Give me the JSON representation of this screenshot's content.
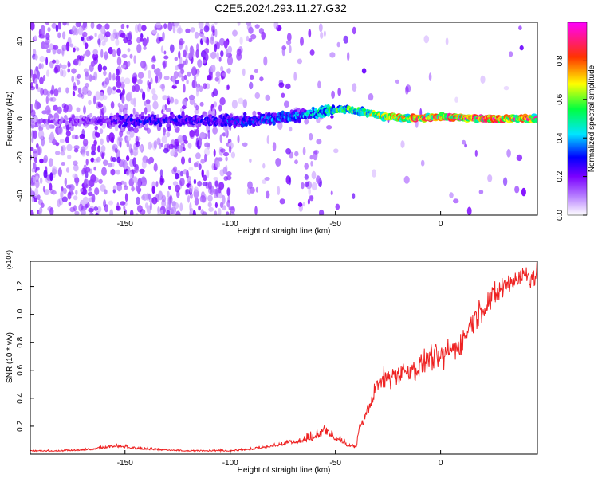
{
  "title": "C2E5.2024.293.11.27.G32",
  "chart_data": [
    {
      "type": "heatmap",
      "title": "C2E5.2024.293.11.27.G32",
      "xlabel": "Height of straight line (km)",
      "ylabel": "Frequency (Hz)",
      "xlim": [
        -195,
        46
      ],
      "ylim": [
        -50,
        50
      ],
      "x_ticks": [
        -150,
        -100,
        -50,
        0
      ],
      "y_ticks": [
        -40,
        -20,
        0,
        20,
        40
      ],
      "x_tick_labels": [
        "-150",
        "-100",
        "-50",
        "0"
      ],
      "y_tick_labels": [
        "-40",
        "-20",
        "0",
        "20",
        "40"
      ],
      "colorbar": {
        "label": "Normalized spectral amplitude",
        "range": [
          0,
          1
        ],
        "ticks": [
          0.0,
          0.2,
          0.4,
          0.6,
          0.8
        ],
        "tick_labels": [
          "0.0",
          "0.2",
          "0.4",
          "0.6",
          "0.8"
        ],
        "colormap": [
          "#ffffff",
          "#7b00ff",
          "#0000ff",
          "#00e5ff",
          "#00ff00",
          "#ffff00",
          "#ff0000",
          "#ff00ff"
        ]
      },
      "ridge": {
        "x": [
          -195,
          -170,
          -150,
          -110,
          -90,
          -70,
          -55,
          -45,
          -35,
          -25,
          -15,
          0,
          20,
          46
        ],
        "frequency": [
          -2,
          -1,
          -1,
          -1,
          -1,
          1,
          4,
          5,
          3,
          1,
          0,
          1,
          0,
          0
        ],
        "amplitude": [
          0.15,
          0.2,
          0.3,
          0.3,
          0.35,
          0.4,
          0.5,
          0.6,
          0.65,
          0.7,
          0.8,
          0.85,
          0.9,
          0.85
        ]
      },
      "grid": false
    },
    {
      "type": "line",
      "xlabel": "Height of straight line (km)",
      "ylabel": "SNR (10 * v/v)",
      "y_multiplier": "(x10⁴)",
      "xlim": [
        -195,
        46
      ],
      "ylim": [
        0,
        1.38
      ],
      "x_ticks": [
        -150,
        -100,
        -50,
        0
      ],
      "y_ticks": [
        0.2,
        0.4,
        0.6,
        0.8,
        1.0,
        1.2
      ],
      "x_tick_labels": [
        "-150",
        "-100",
        "-50",
        "0"
      ],
      "y_tick_labels": [
        "0.2",
        "0.4",
        "0.6",
        "0.8",
        "1.0",
        "1.2"
      ],
      "series": [
        {
          "color": "#ee2222",
          "x": [
            -195,
            -180,
            -165,
            -155,
            -140,
            -120,
            -100,
            -90,
            -80,
            -70,
            -60,
            -55,
            -50,
            -45,
            -40,
            -38,
            -35,
            -30,
            -25,
            -20,
            -15,
            -10,
            -5,
            0,
            5,
            10,
            15,
            20,
            25,
            30,
            35,
            40,
            46
          ],
          "y": [
            0.02,
            0.02,
            0.03,
            0.05,
            0.03,
            0.02,
            0.02,
            0.03,
            0.05,
            0.07,
            0.1,
            0.14,
            0.1,
            0.06,
            0.04,
            0.2,
            0.3,
            0.5,
            0.55,
            0.58,
            0.6,
            0.62,
            0.7,
            0.68,
            0.75,
            0.8,
            0.95,
            1.05,
            1.12,
            1.2,
            1.25,
            1.28,
            1.28
          ]
        }
      ],
      "grid": false
    }
  ]
}
